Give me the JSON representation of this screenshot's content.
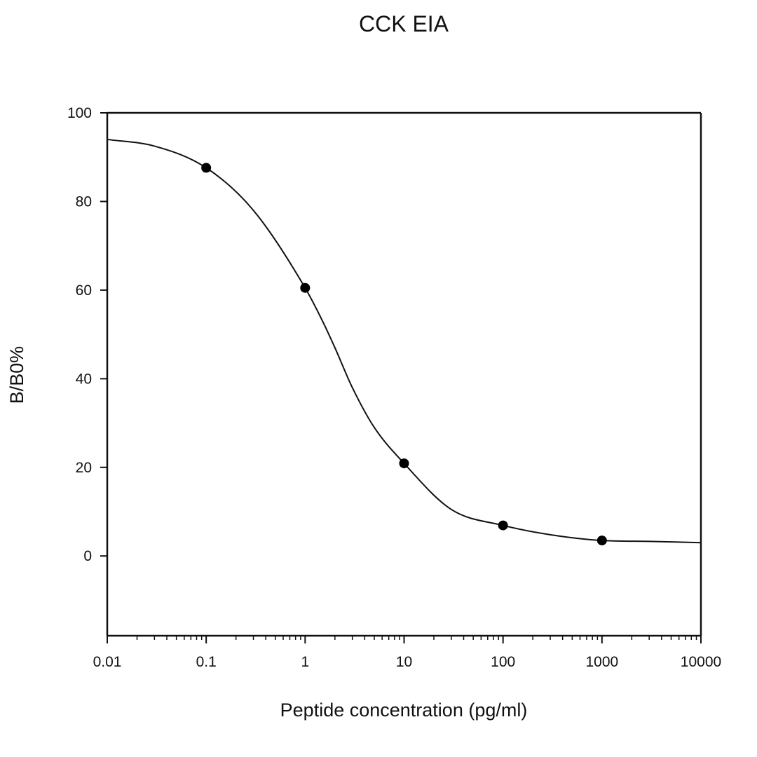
{
  "chart_data": {
    "type": "scatter",
    "title": "CCK EIA",
    "xlabel": "Peptide concentration (pg/ml)",
    "ylabel": "B/B0%",
    "x_scale": "log",
    "xlim": [
      0.01,
      10000
    ],
    "ylim": [
      -18,
      100
    ],
    "x_ticks": [
      {
        "value": 0.01,
        "label": "0.01"
      },
      {
        "value": 0.1,
        "label": "0.1"
      },
      {
        "value": 1,
        "label": "1"
      },
      {
        "value": 10,
        "label": "10"
      },
      {
        "value": 100,
        "label": "100"
      },
      {
        "value": 1000,
        "label": "1000"
      },
      {
        "value": 10000,
        "label": "10000"
      }
    ],
    "y_ticks": [
      {
        "value": 0,
        "label": "0"
      },
      {
        "value": 20,
        "label": "20"
      },
      {
        "value": 40,
        "label": "40"
      },
      {
        "value": 60,
        "label": "60"
      },
      {
        "value": 80,
        "label": "80"
      },
      {
        "value": 100,
        "label": "100"
      }
    ],
    "grid": false,
    "series": [
      {
        "type": "scatter",
        "x": [
          0.1,
          1,
          10,
          100,
          1000
        ],
        "y": [
          87.6,
          60.5,
          20.9,
          6.9,
          3.5
        ]
      },
      {
        "type": "line",
        "fit": "four-parameter logistic",
        "x": [
          0.01,
          0.03,
          0.1,
          0.3,
          1,
          1.5,
          2,
          3,
          5,
          10,
          30,
          100,
          300,
          1000,
          3000,
          10000
        ],
        "y": [
          94.0,
          92.5,
          87.6,
          78.0,
          60.5,
          53.0,
          47.0,
          38.0,
          29.0,
          20.9,
          10.5,
          6.9,
          4.8,
          3.5,
          3.3,
          3.0
        ]
      }
    ]
  }
}
